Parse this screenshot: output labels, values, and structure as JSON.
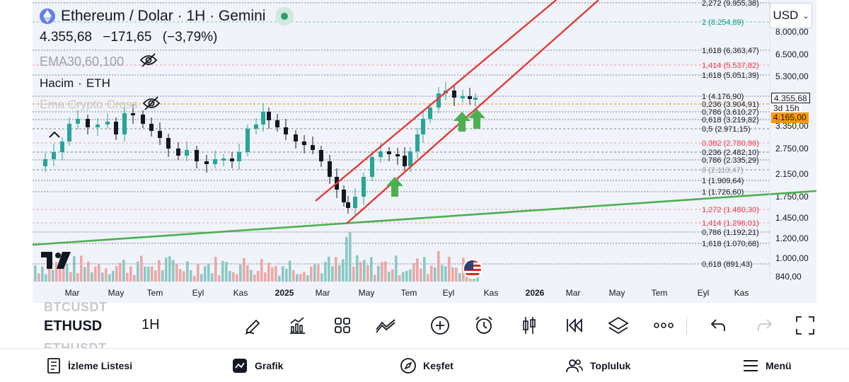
{
  "legend": {
    "title": "Ethereum / Dolar · 1H · Gemini",
    "price": "4.355,68",
    "change": "−171,65",
    "change_pct": "(−3,79%)",
    "indicator_ema": "EMA30,60,100",
    "volume_label": "Hacim",
    "volume_unit": "ETH",
    "indicator_cross": "Ema Crypto Cross"
  },
  "currency": {
    "label": "USD"
  },
  "price_axis": {
    "labels": [
      "8.000,00",
      "6.500,00",
      "5.300,00",
      "3.350,00",
      "2.750,00",
      "2.150,00",
      "1.750,00",
      "1.450,00",
      "1.200,00",
      "1.000,00",
      "840,00"
    ],
    "current_price": "4.355,68",
    "countdown": "3d 15h",
    "ref_price": "4.165,00"
  },
  "time_axis": {
    "labels": [
      "Mar",
      "May",
      "Tem",
      "Eyl",
      "Kas",
      "2025",
      "Mar",
      "May",
      "Tem",
      "Eyl",
      "Kas",
      "2026",
      "Mar",
      "May",
      "Tem",
      "Eyl",
      "Kas"
    ]
  },
  "fib_levels": [
    {
      "label": "2,272 (9.955,38)",
      "color": "#131722"
    },
    {
      "label": "2 (8.254,89)",
      "color": "#089981"
    },
    {
      "label": "1,618 (6.363,47)",
      "color": "#131722"
    },
    {
      "label": "1,414 (5.537,82)",
      "color": "#f23645"
    },
    {
      "label": "1,618 (5.051,39)",
      "color": "#131722"
    },
    {
      "label": "1 (4.176,90)",
      "color": "#131722"
    },
    {
      "label": "0,236 (3.904,91)",
      "color": "#131722"
    },
    {
      "label": "0,786 (3.610,27)",
      "color": "#131722"
    },
    {
      "label": "0,618 (3.219,82)",
      "color": "#131722"
    },
    {
      "label": "0,5 (2.971,15)",
      "color": "#131722"
    },
    {
      "label": "0,382 (2.780,86)",
      "color": "#f23645"
    },
    {
      "label": "0,236 (2.482,10)",
      "color": "#131722"
    },
    {
      "label": "0,786 (2.335,29)",
      "color": "#131722"
    },
    {
      "label": "0 (2.113,47)",
      "color": "#9598a1"
    },
    {
      "label": "1 (1.909,64)",
      "color": "#131722"
    },
    {
      "label": "1 (1.726,60)",
      "color": "#131722"
    },
    {
      "label": "1,272 (1.480,30)",
      "color": "#f23645"
    },
    {
      "label": "1,414 (1.296,01)",
      "color": "#f23645"
    },
    {
      "label": "0,786 (1.192,21)",
      "color": "#131722"
    },
    {
      "label": "1,618 (1.070,68)",
      "color": "#131722"
    },
    {
      "label": "0,618 (891,43)",
      "color": "#131722"
    }
  ],
  "symbols": {
    "prev": "BTCUSDT",
    "current": "ETHUSD",
    "next": "ETHUSDT",
    "interval": "1H"
  },
  "toolbar": [
    {
      "name": "draw-pencil-icon"
    },
    {
      "name": "indicators-icon"
    },
    {
      "name": "layout-grid-icon"
    },
    {
      "name": "trend-compare-icon"
    },
    {
      "name": "add-circle-icon"
    },
    {
      "name": "alarm-icon"
    },
    {
      "name": "candles-icon"
    },
    {
      "name": "replay-icon"
    },
    {
      "name": "layers-icon"
    },
    {
      "name": "more-icon"
    },
    {
      "name": "undo-icon"
    },
    {
      "name": "redo-icon"
    },
    {
      "name": "fullscreen-icon"
    }
  ],
  "nav": {
    "watchlist": "İzleme Listesi",
    "chart": "Grafik",
    "explore": "Keşfet",
    "community": "Topluluk",
    "menu": "Menü"
  },
  "colors": {
    "up": "#26a69a",
    "down": "#131722",
    "channel": "#e53935",
    "trend": "#4caf50",
    "arrow": "#4caf50",
    "vol_up": "#7fc4bd",
    "vol_down": "#ec9e9c"
  }
}
